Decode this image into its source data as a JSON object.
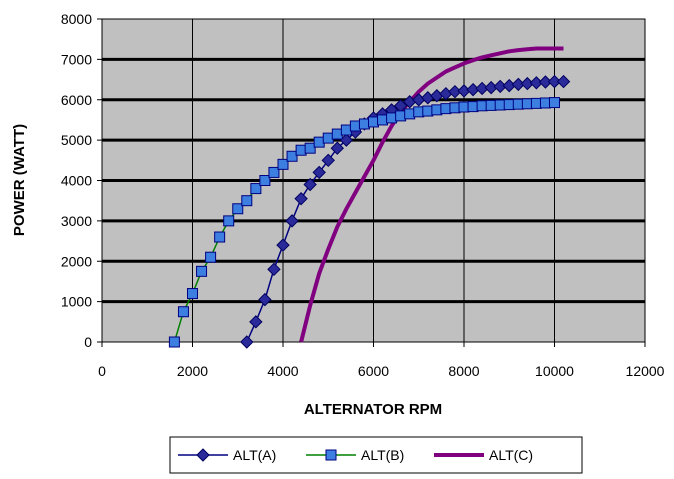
{
  "chart_data": {
    "type": "line",
    "title": "",
    "xlabel": "ALTERNATOR RPM",
    "ylabel": "POWER (WATT)",
    "xlim": [
      0,
      12000
    ],
    "ylim": [
      0,
      8000
    ],
    "x_ticks": [
      0,
      2000,
      4000,
      6000,
      8000,
      10000,
      12000
    ],
    "y_ticks": [
      0,
      1000,
      2000,
      3000,
      4000,
      5000,
      6000,
      7000,
      8000
    ],
    "grid": true,
    "plot_background": "#c0c0c0",
    "legend_position": "bottom",
    "series": [
      {
        "name": "ALT(A)",
        "color": "#000080",
        "marker": "diamond",
        "x": [
          3200,
          3400,
          3600,
          3800,
          4000,
          4200,
          4400,
          4600,
          4800,
          5000,
          5200,
          5400,
          5600,
          5800,
          6000,
          6200,
          6400,
          6600,
          6800,
          7000,
          7200,
          7400,
          7600,
          7800,
          8000,
          8200,
          8400,
          8600,
          8800,
          9000,
          9200,
          9400,
          9600,
          9800,
          10000,
          10200
        ],
        "y": [
          0,
          500,
          1050,
          1800,
          2400,
          3000,
          3550,
          3900,
          4200,
          4500,
          4800,
          5000,
          5200,
          5400,
          5550,
          5650,
          5750,
          5850,
          5950,
          6000,
          6050,
          6100,
          6150,
          6200,
          6220,
          6250,
          6280,
          6300,
          6330,
          6350,
          6380,
          6400,
          6420,
          6440,
          6450,
          6450
        ]
      },
      {
        "name": "ALT(B)",
        "color": "#008000",
        "marker": "square",
        "x": [
          1600,
          1800,
          2000,
          2200,
          2400,
          2600,
          2800,
          3000,
          3200,
          3400,
          3600,
          3800,
          4000,
          4200,
          4400,
          4600,
          4800,
          5000,
          5200,
          5400,
          5600,
          5800,
          6000,
          6200,
          6400,
          6600,
          6800,
          7000,
          7200,
          7400,
          7600,
          7800,
          8000,
          8200,
          8400,
          8600,
          8800,
          9000,
          9200,
          9400,
          9600,
          9800,
          10000
        ],
        "y": [
          0,
          750,
          1200,
          1750,
          2100,
          2600,
          3000,
          3300,
          3500,
          3800,
          4000,
          4200,
          4400,
          4600,
          4750,
          4800,
          4950,
          5050,
          5150,
          5250,
          5350,
          5400,
          5450,
          5500,
          5550,
          5600,
          5650,
          5700,
          5720,
          5750,
          5780,
          5800,
          5820,
          5830,
          5850,
          5860,
          5870,
          5880,
          5890,
          5900,
          5910,
          5920,
          5930
        ]
      },
      {
        "name": "ALT(C)",
        "color": "#800080",
        "marker": "none",
        "x": [
          4400,
          4600,
          4800,
          5000,
          5200,
          5400,
          5600,
          5800,
          6000,
          6200,
          6400,
          6600,
          6800,
          7000,
          7200,
          7400,
          7600,
          7800,
          8000,
          8200,
          8400,
          8600,
          8800,
          9000,
          9200,
          9400,
          9600,
          9800,
          10000,
          10200
        ],
        "y": [
          0,
          900,
          1700,
          2300,
          2850,
          3300,
          3700,
          4100,
          4500,
          4950,
          5350,
          5700,
          5950,
          6200,
          6400,
          6550,
          6700,
          6800,
          6900,
          6980,
          7050,
          7100,
          7150,
          7200,
          7230,
          7250,
          7270,
          7270,
          7270,
          7270
        ]
      }
    ]
  }
}
